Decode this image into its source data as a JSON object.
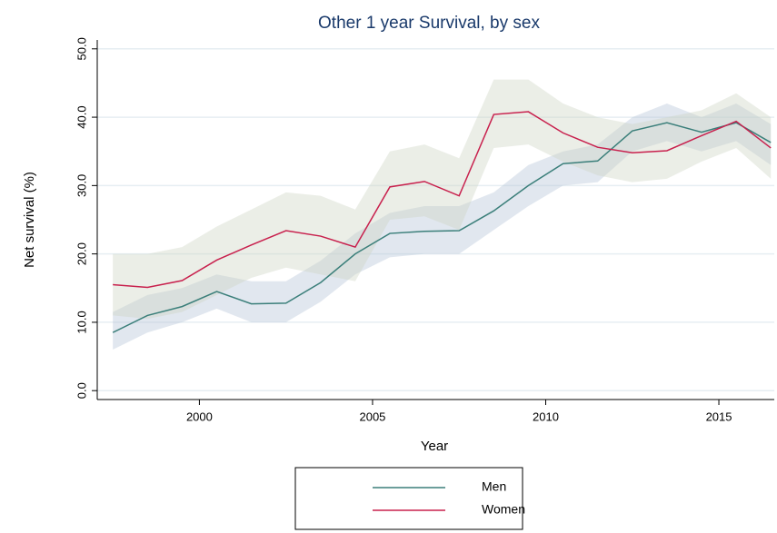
{
  "chart_data": {
    "type": "line",
    "title": "Other 1 year Survival, by sex",
    "xlabel": "Year",
    "ylabel": "Net survival (%)",
    "x": [
      1997.5,
      1998.5,
      1999.5,
      2000.5,
      2001.5,
      2002.5,
      2003.5,
      2004.5,
      2005.5,
      2006.5,
      2007.5,
      2008.5,
      2009.5,
      2010.5,
      2011.5,
      2012.5,
      2013.5,
      2014.5,
      2015.5,
      2016.5
    ],
    "series": [
      {
        "name": "Men",
        "color": "#3b7f7a",
        "band_color": "#b4c2d8",
        "values": [
          8.5,
          11.0,
          12.3,
          14.5,
          12.7,
          12.8,
          15.8,
          20.0,
          23.0,
          23.3,
          23.4,
          26.3,
          30.0,
          33.2,
          33.6,
          38.0,
          39.2,
          37.8,
          39.2,
          36.3
        ],
        "upper": [
          11.5,
          14,
          15,
          17,
          16,
          16,
          19,
          23,
          26,
          27,
          27,
          29,
          33,
          35,
          36,
          40,
          42,
          40,
          42,
          39
        ],
        "lower": [
          6,
          8.5,
          10,
          12,
          10,
          10,
          13,
          17,
          19.5,
          20,
          20,
          23.5,
          27,
          30,
          30.5,
          35,
          36.5,
          35,
          36.5,
          33
        ]
      },
      {
        "name": "Women",
        "color": "#c8204d",
        "band_color": "#cdd5c2",
        "values": [
          15.5,
          15.1,
          16.1,
          19.1,
          21.3,
          23.4,
          22.6,
          21.0,
          29.8,
          30.6,
          28.5,
          40.4,
          40.8,
          37.7,
          35.6,
          34.8,
          35.1,
          37.3,
          39.4,
          35.5
        ],
        "upper": [
          20,
          20,
          21,
          24,
          26.5,
          29,
          28.5,
          26.5,
          35,
          36,
          34,
          45.5,
          45.5,
          42,
          40,
          39,
          40,
          41,
          43.5,
          40
        ],
        "lower": [
          11,
          10.5,
          11.5,
          14,
          16.5,
          18,
          17,
          16,
          25,
          25.5,
          23.5,
          35.5,
          36,
          33.5,
          31.5,
          30.5,
          31,
          33.5,
          35.5,
          31
        ]
      }
    ],
    "xlim": [
      1997.05,
      2016.6
    ],
    "xticks": [
      2000,
      2005,
      2010,
      2015
    ],
    "ylim": [
      -1.3,
      51.3
    ],
    "yticks": [
      {
        "value": 0,
        "label": "0.0"
      },
      {
        "value": 10,
        "label": "10.0"
      },
      {
        "value": 20,
        "label": "20.0"
      },
      {
        "value": 30,
        "label": "30.0"
      },
      {
        "value": 40,
        "label": "40.0"
      },
      {
        "value": 50,
        "label": "50.0"
      }
    ],
    "grid": true,
    "legend": "bottom"
  }
}
